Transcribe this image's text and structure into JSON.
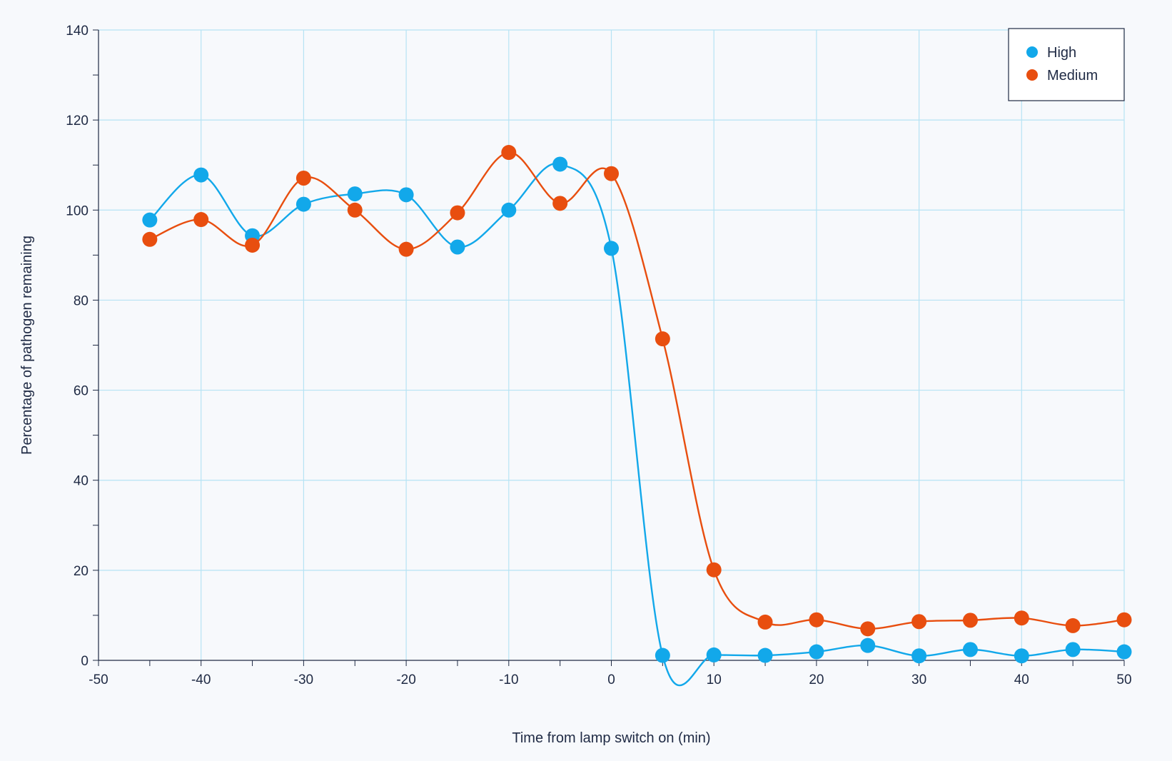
{
  "chart_data": {
    "type": "line",
    "title": "",
    "xlabel": "Time from lamp switch on (min)",
    "ylabel": "Percentage of pathogen remaining",
    "xlim": [
      -50,
      50
    ],
    "ylim": [
      0,
      140
    ],
    "x_ticks": [
      -50,
      -40,
      -30,
      -20,
      -10,
      0,
      10,
      20,
      30,
      40,
      50
    ],
    "y_ticks": [
      0,
      20,
      40,
      60,
      80,
      100,
      120,
      140
    ],
    "grid": true,
    "smoothed": true,
    "legend_position": "top-right",
    "x": [
      -45,
      -40,
      -35,
      -30,
      -25,
      -20,
      -15,
      -10,
      -5,
      0,
      5,
      10,
      15,
      20,
      25,
      30,
      35,
      40,
      45,
      50
    ],
    "series": [
      {
        "name": "High",
        "color": "#12a8ea",
        "values": [
          97.8,
          107.8,
          94.3,
          101.3,
          103.6,
          103.4,
          91.8,
          100,
          110.2,
          91.5,
          1.1,
          1.2,
          1.1,
          1.9,
          3.3,
          1.0,
          2.4,
          1.0,
          2.4,
          1.9
        ]
      },
      {
        "name": "Medium",
        "color": "#e84e0f",
        "values": [
          93.5,
          97.9,
          92.2,
          107.1,
          100,
          91.3,
          99.4,
          112.8,
          101.5,
          108.1,
          71.4,
          20.1,
          8.5,
          9.0,
          7.0,
          8.6,
          8.9,
          9.4,
          7.7,
          9.0
        ]
      }
    ]
  },
  "colors": {
    "background": "#f7f9fc",
    "grid": "#b6e3f4",
    "axis": "#1f2a44"
  }
}
